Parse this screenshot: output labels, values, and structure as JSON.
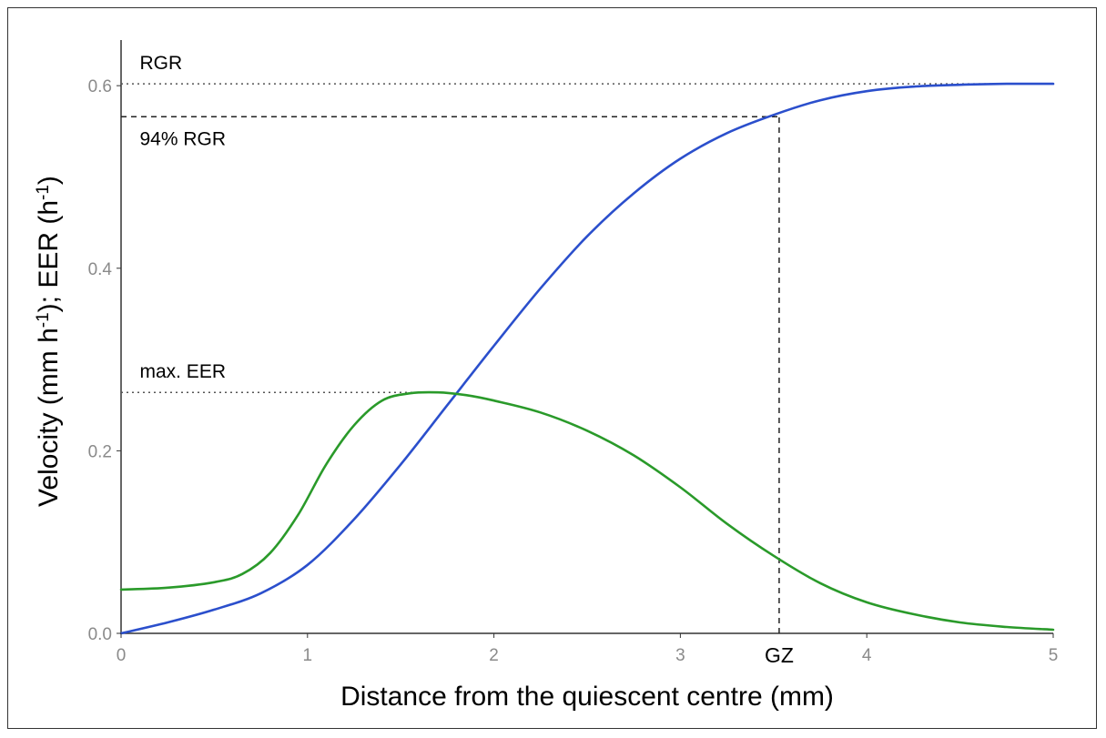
{
  "chart_data": {
    "type": "line",
    "xlabel": "Distance from the quiescent centre (mm)",
    "ylabel": {
      "main": "Velocity (mm h",
      "sup1": "-1",
      "mid": "); EER (h",
      "sup2": "-1",
      "end": ")"
    },
    "xlim": [
      0,
      5
    ],
    "ylim": [
      0,
      0.65
    ],
    "x_ticks": [
      {
        "value": 0,
        "label": "0"
      },
      {
        "value": 1,
        "label": "1"
      },
      {
        "value": 2,
        "label": "2"
      },
      {
        "value": 3,
        "label": "3"
      },
      {
        "value": 4,
        "label": "4"
      },
      {
        "value": 5,
        "label": "5"
      }
    ],
    "y_ticks": [
      {
        "value": 0.0,
        "label": "0.0"
      },
      {
        "value": 0.2,
        "label": "0.2"
      },
      {
        "value": 0.4,
        "label": "0.4"
      },
      {
        "value": 0.6,
        "label": "0.6"
      }
    ],
    "grid": false,
    "series": [
      {
        "color": "#2b4fcc",
        "x": [
          0,
          0.25,
          0.5,
          0.75,
          1.0,
          1.25,
          1.5,
          1.75,
          2.0,
          2.25,
          2.5,
          2.75,
          3.0,
          3.25,
          3.5,
          3.75,
          4.0,
          4.25,
          4.5,
          4.75,
          5.0
        ],
        "y": [
          0.0,
          0.012,
          0.026,
          0.044,
          0.075,
          0.125,
          0.185,
          0.25,
          0.315,
          0.378,
          0.435,
          0.482,
          0.52,
          0.548,
          0.568,
          0.584,
          0.594,
          0.599,
          0.601,
          0.602,
          0.602
        ]
      },
      {
        "color": "#2a9a2a",
        "x": [
          0,
          0.25,
          0.5,
          0.65,
          0.8,
          0.95,
          1.1,
          1.25,
          1.4,
          1.55,
          1.7,
          1.85,
          2.0,
          2.25,
          2.5,
          2.75,
          3.0,
          3.25,
          3.5,
          3.75,
          4.0,
          4.25,
          4.5,
          4.75,
          5.0
        ],
        "y": [
          0.048,
          0.05,
          0.056,
          0.065,
          0.088,
          0.13,
          0.185,
          0.228,
          0.255,
          0.263,
          0.264,
          0.261,
          0.255,
          0.242,
          0.222,
          0.195,
          0.16,
          0.12,
          0.085,
          0.055,
          0.034,
          0.021,
          0.012,
          0.007,
          0.004
        ]
      }
    ],
    "reference_lines": [
      {
        "kind": "horizontal",
        "y": 0.602,
        "style": "dotted",
        "x_from": 0,
        "x_to": 5
      },
      {
        "kind": "horizontal",
        "y": 0.566,
        "style": "dashed",
        "x_from": 0,
        "x_to": 3.53
      },
      {
        "kind": "vertical",
        "x": 3.53,
        "style": "dashed",
        "y_from": 0,
        "y_to": 0.566
      },
      {
        "kind": "horizontal",
        "y": 0.264,
        "style": "dotted",
        "x_from": 0,
        "x_to": 1.7
      }
    ],
    "annotations": [
      {
        "text": "RGR",
        "x": 0.1,
        "y": 0.618
      },
      {
        "text": "94% RGR",
        "x": 0.1,
        "y": 0.535
      },
      {
        "text": "max. EER",
        "x": 0.1,
        "y": 0.28
      }
    ],
    "gz": {
      "label": "GZ",
      "x": 3.53
    }
  }
}
